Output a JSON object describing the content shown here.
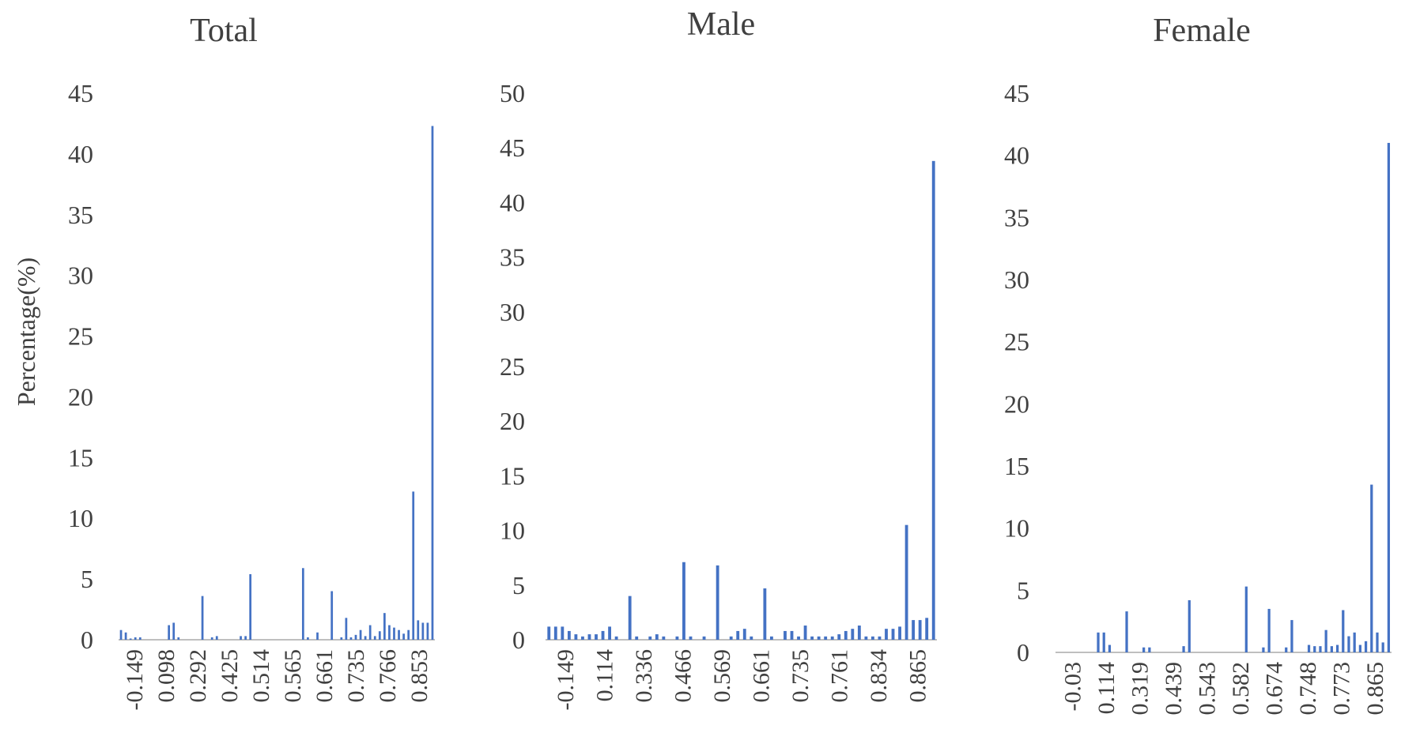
{
  "figure": {
    "ylabel": "Percentage(%)"
  },
  "colors": {
    "bar": "#4472c4",
    "axis": "#bfbfbf",
    "text": "#404040"
  },
  "chart_data": [
    {
      "type": "bar",
      "title": "Total",
      "ylabel": "Percentage(%)",
      "ylim": [
        0,
        45
      ],
      "yticks": [
        0,
        5,
        10,
        15,
        20,
        25,
        30,
        35,
        40,
        45
      ],
      "xtick_labels": [
        "-0.149",
        "0.098",
        "0.292",
        "0.425",
        "0.514",
        "0.565",
        "0.661",
        "0.735",
        "0.766",
        "0.853"
      ],
      "values": [
        0.8,
        0.6,
        0.1,
        0.2,
        0.2,
        0,
        0,
        0,
        0,
        0,
        1.2,
        1.4,
        0.2,
        0,
        0,
        0,
        0,
        3.6,
        0,
        0.2,
        0.3,
        0,
        0,
        0,
        0,
        0.3,
        0.3,
        5.4,
        0,
        0,
        0,
        0,
        0,
        0,
        0,
        0,
        0,
        0,
        5.9,
        0.2,
        0,
        0.6,
        0,
        0,
        4,
        0,
        0.2,
        1.8,
        0.2,
        0.4,
        0.8,
        0.3,
        1.2,
        0.3,
        0.7,
        2.2,
        1.2,
        1,
        0.8,
        0.5,
        0.8,
        12.2,
        1.6,
        1.4,
        1.4,
        42.3
      ]
    },
    {
      "type": "bar",
      "title": "Male",
      "ylim": [
        0,
        50
      ],
      "yticks": [
        0,
        5,
        10,
        15,
        20,
        25,
        30,
        35,
        40,
        45,
        50
      ],
      "xtick_labels": [
        "-0.149",
        "0.114",
        "0.336",
        "0.466",
        "0.569",
        "0.661",
        "0.735",
        "0.761",
        "0.834",
        "0.865"
      ],
      "values": [
        1.2,
        1.2,
        1.2,
        0.8,
        0.5,
        0.3,
        0.5,
        0.5,
        0.8,
        1.2,
        0.3,
        0,
        4,
        0.3,
        0,
        0.3,
        0.5,
        0.3,
        0,
        0.3,
        7.1,
        0.3,
        0,
        0.3,
        0,
        6.8,
        0,
        0.3,
        0.8,
        1,
        0.3,
        0,
        4.7,
        0.3,
        0,
        0.8,
        0.8,
        0.3,
        1.3,
        0.3,
        0.3,
        0.3,
        0.3,
        0.5,
        0.8,
        1,
        1.3,
        0.3,
        0.3,
        0.3,
        1,
        1,
        1.2,
        10.5,
        1.8,
        1.8,
        2,
        43.8
      ]
    },
    {
      "type": "bar",
      "title": "Female",
      "ylim": [
        0,
        45
      ],
      "yticks": [
        0,
        5,
        10,
        15,
        20,
        25,
        30,
        35,
        40,
        45
      ],
      "xtick_labels": [
        "-0.03",
        "0.114",
        "0.319",
        "0.439",
        "0.543",
        "0.582",
        "0.674",
        "0.748",
        "0.773",
        "0.865"
      ],
      "values": [
        0,
        0,
        0,
        0,
        0,
        0,
        0,
        1.6,
        1.6,
        0.6,
        0,
        0,
        3.3,
        0,
        0,
        0.4,
        0.4,
        0,
        0,
        0,
        0,
        0,
        0.5,
        4.2,
        0,
        0,
        0,
        0,
        0,
        0,
        0,
        0,
        0,
        5.3,
        0,
        0,
        0.4,
        3.5,
        0,
        0,
        0.4,
        2.6,
        0,
        0,
        0.6,
        0.5,
        0.5,
        1.8,
        0.5,
        0.6,
        3.4,
        1.3,
        1.6,
        0.6,
        0.9,
        13.5,
        1.6,
        0.8,
        41
      ]
    }
  ]
}
